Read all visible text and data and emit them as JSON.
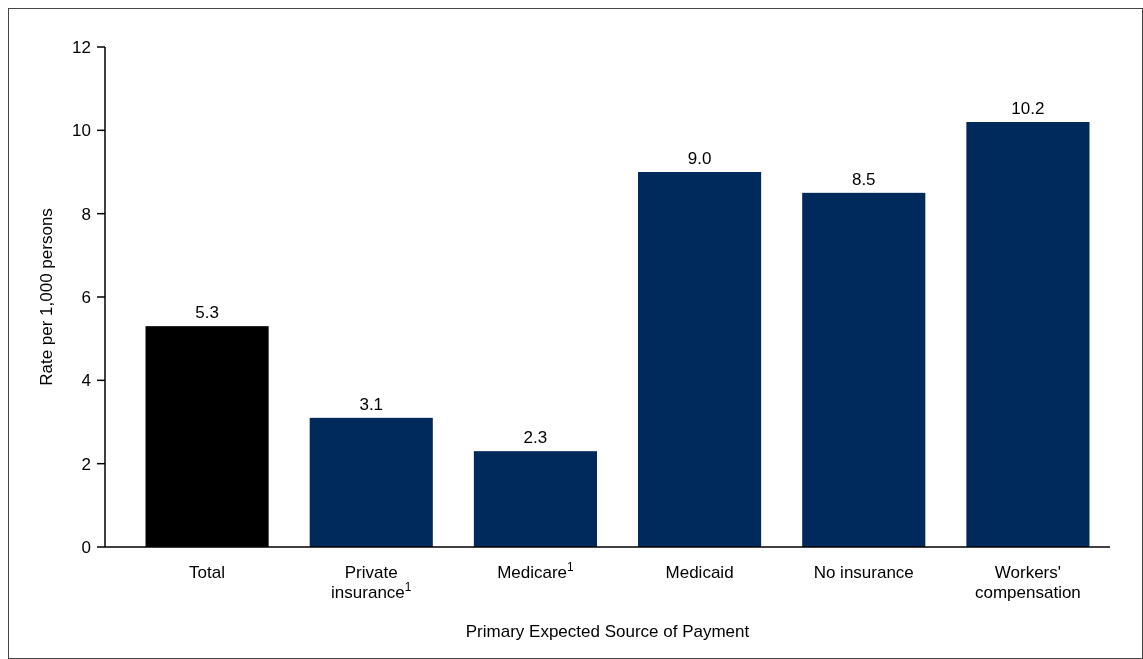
{
  "chart_data": {
    "type": "bar",
    "xlabel": "Primary Expected Source of Payment",
    "ylabel": "Rate per 1,000 persons",
    "categories": [
      "Total",
      "Private insurance$^{1}$",
      "Medicare$^{1}$",
      "Medicaid",
      "No insurance",
      "Workers' compensation"
    ],
    "values": [
      5.3,
      3.1,
      2.3,
      9.0,
      8.5,
      10.2
    ],
    "colors": [
      "#000000",
      "#002a5c",
      "#002a5c",
      "#002a5c",
      "#002a5c",
      "#002a5c"
    ],
    "value_labels": [
      "5.3",
      "3.1",
      "2.3",
      "9.0",
      "8.5",
      "10.2"
    ],
    "ylim": [
      0,
      12
    ],
    "yticks": [
      0,
      2,
      4,
      6,
      8,
      10,
      12
    ]
  }
}
